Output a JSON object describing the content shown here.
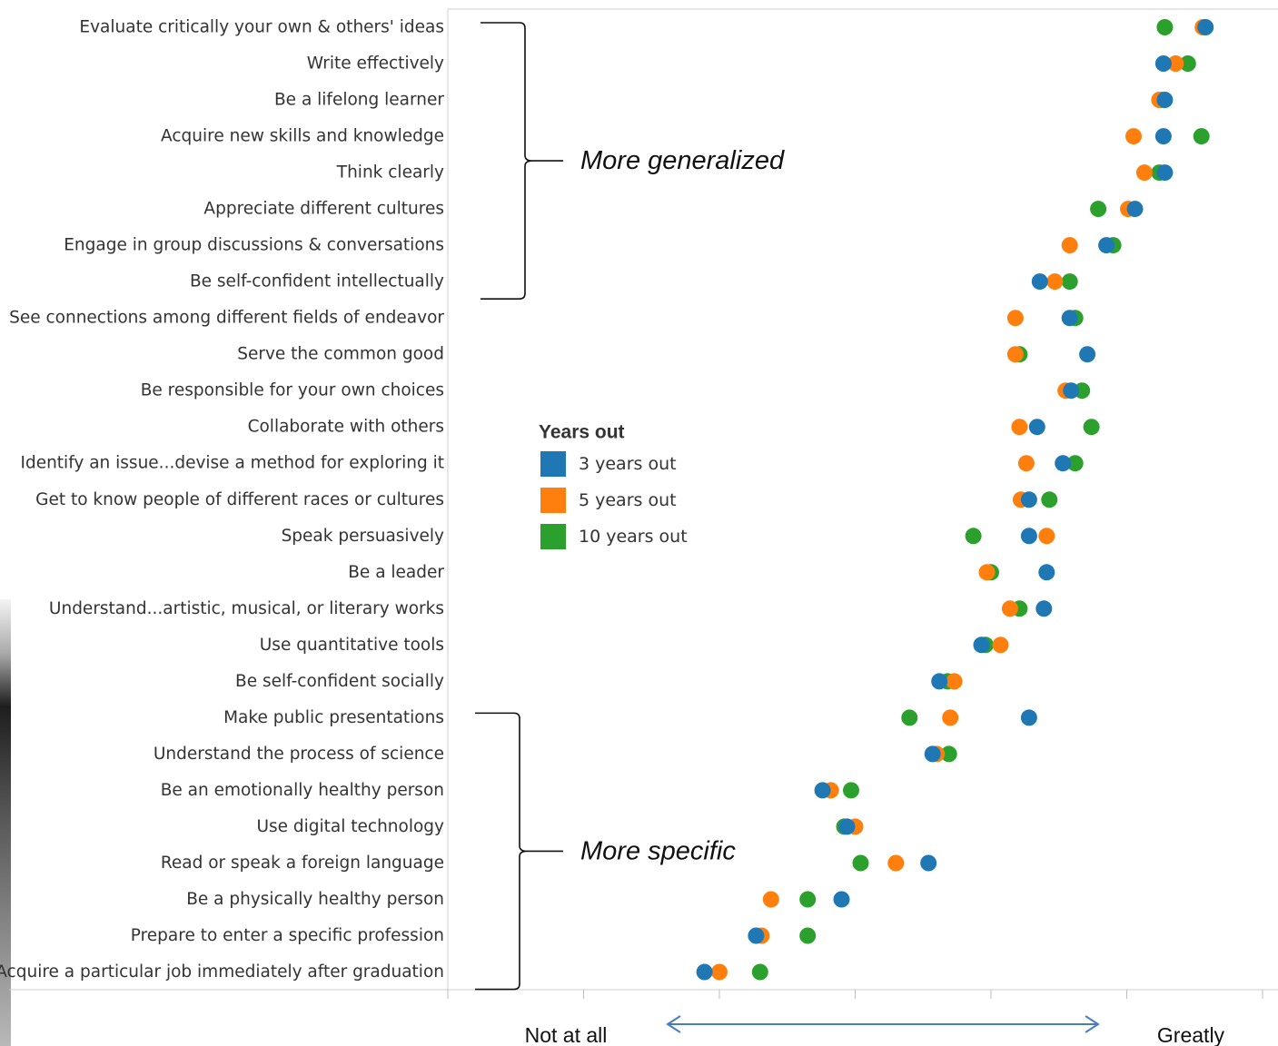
{
  "chart_data": {
    "type": "scatter",
    "title": "",
    "xlabel": "",
    "ylabel": "",
    "x_scale_labels": {
      "low": "Not at all",
      "high": "Greatly"
    },
    "legend": {
      "title": "Years out",
      "placement": "center",
      "entries": [
        {
          "label": "3 years out",
          "color": "#1f77b4"
        },
        {
          "label": "5 years out",
          "color": "#ff7f0e"
        },
        {
          "label": "10 years out",
          "color": "#2ca02c"
        }
      ]
    },
    "xlim": [
      0,
      6
    ],
    "grid": false,
    "categories": [
      "Evaluate critically your own & others' ideas",
      "Write effectively",
      "Be a lifelong learner",
      "Acquire new skills and knowledge",
      "Think clearly",
      "Appreciate different cultures",
      "Engage in group discussions & conversations",
      "Be self-confident intellectually",
      "See connections among different fields of endeavor",
      "Serve the common good",
      "Be responsible for your own choices",
      "Collaborate with others",
      "Identify an issue...devise a method for exploring it",
      "Get to know people of different races or cultures",
      "Speak persuasively",
      "Be a leader",
      "Understand...artistic, musical, or literary works",
      "Use quantitative tools",
      "Be self-confident socially",
      "Make public presentations",
      "Understand the process of science",
      "Be an emotionally healthy person",
      "Use digital technology",
      "Read or speak a foreign language",
      "Be a physically healthy person",
      "Prepare to enter a specific profession",
      "Acquire a particular job immediately after graduation"
    ],
    "series": [
      {
        "name": "3 years out",
        "color": "#1f77b4",
        "values": [
          5.58,
          5.27,
          5.28,
          5.27,
          5.28,
          5.06,
          4.85,
          4.36,
          4.58,
          4.71,
          4.59,
          4.34,
          4.53,
          4.28,
          4.28,
          4.41,
          4.39,
          3.93,
          3.62,
          4.28,
          3.57,
          2.76,
          2.94,
          3.54,
          2.9,
          2.27,
          1.89
        ]
      },
      {
        "name": "5 years out",
        "color": "#ff7f0e",
        "values": [
          5.56,
          5.36,
          5.24,
          5.05,
          5.13,
          5.01,
          4.58,
          4.47,
          4.18,
          4.18,
          4.55,
          4.21,
          4.26,
          4.22,
          4.41,
          3.97,
          4.14,
          4.07,
          3.73,
          3.7,
          3.6,
          2.82,
          3.0,
          3.3,
          2.38,
          2.31,
          2.0
        ]
      },
      {
        "name": "10 years out",
        "color": "#2ca02c",
        "values": [
          5.28,
          5.45,
          5.25,
          5.55,
          5.24,
          4.79,
          4.9,
          4.58,
          4.62,
          4.21,
          4.67,
          4.74,
          4.62,
          4.43,
          3.87,
          4.0,
          4.21,
          3.96,
          3.68,
          3.4,
          3.69,
          2.97,
          2.92,
          3.04,
          2.65,
          2.65,
          2.3
        ]
      }
    ],
    "annotations": [
      {
        "text": "More generalized",
        "range": [
          0,
          7
        ]
      },
      {
        "text": "More specific",
        "range": [
          19,
          26
        ]
      }
    ]
  }
}
